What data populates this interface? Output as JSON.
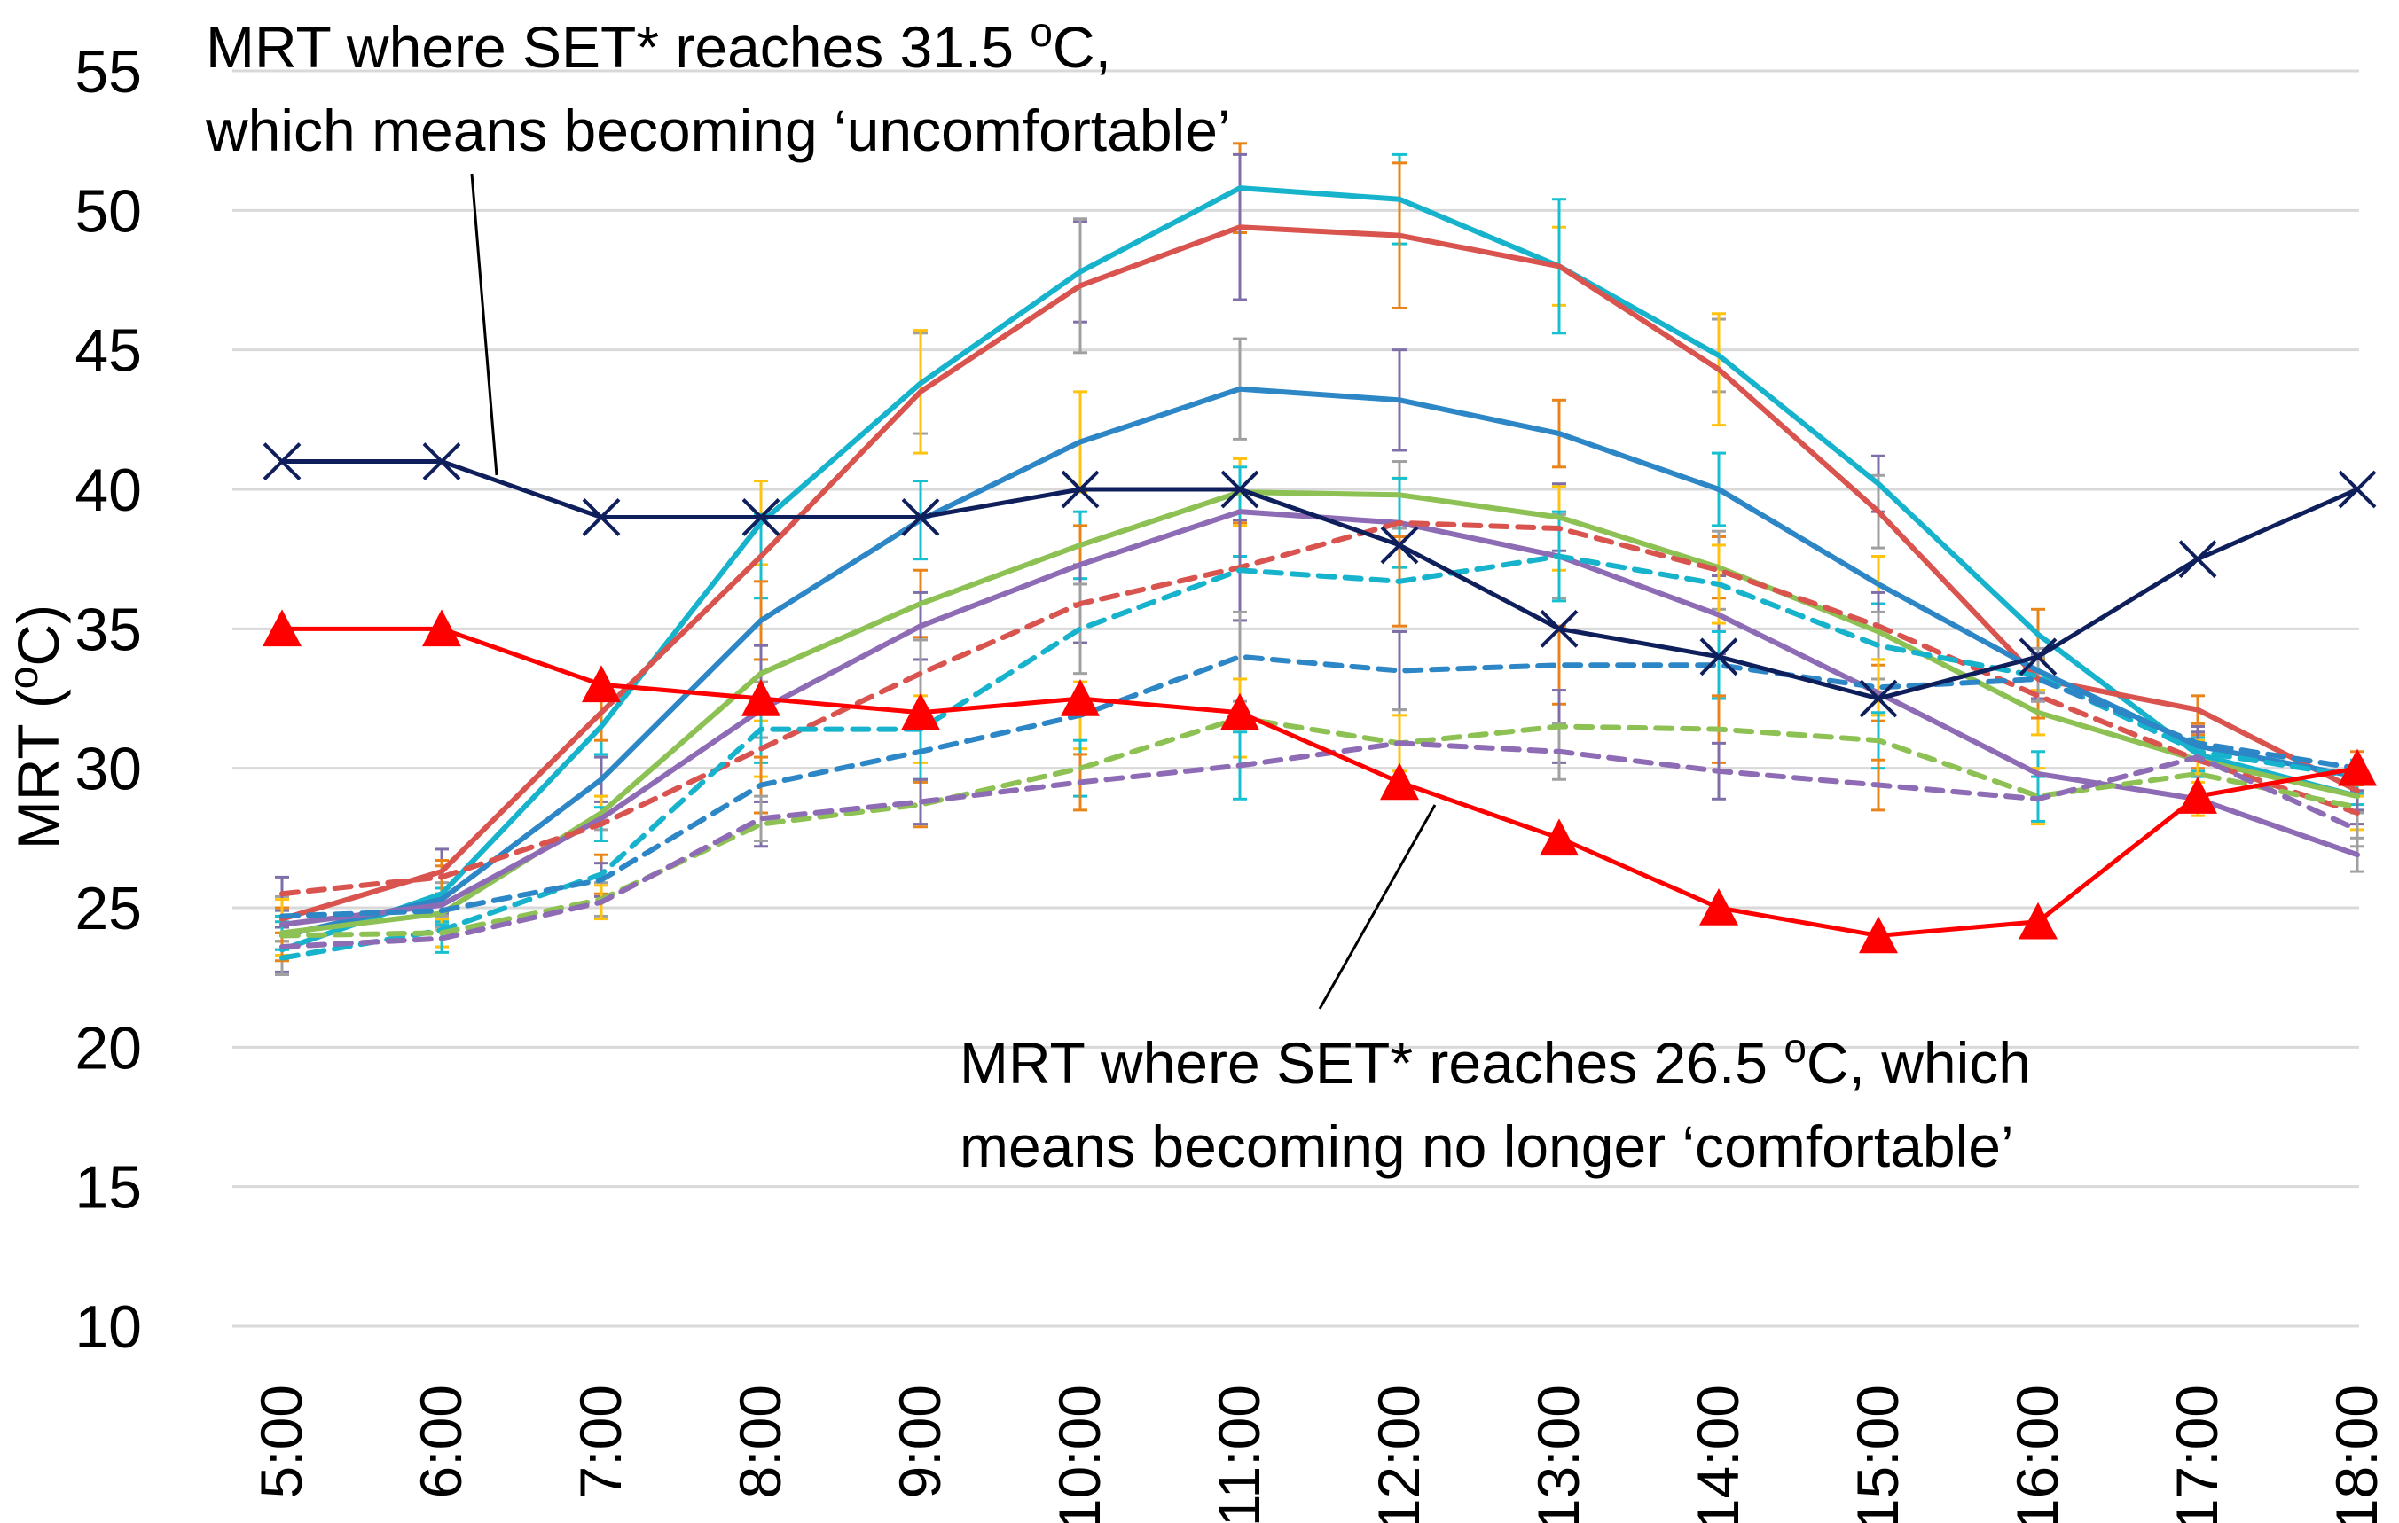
{
  "chart_data": {
    "type": "line",
    "title": "",
    "xlabel": "",
    "ylabel": {
      "main": "MRT (",
      "sup": "o",
      "tail": "C)"
    },
    "ylim": [
      10,
      55
    ],
    "yticks": [
      "10",
      "15",
      "20",
      "25",
      "30",
      "35",
      "40",
      "45",
      "50",
      "55"
    ],
    "categories": [
      "5:00",
      "6:00",
      "7:00",
      "8:00",
      "9:00",
      "10:00",
      "11:00",
      "12:00",
      "13:00",
      "14:00",
      "15:00",
      "16:00",
      "17:00",
      "18:00"
    ],
    "grid": true,
    "series": [
      {
        "id": "solid-cyan",
        "color": "#17b3cc",
        "dash": false,
        "values": [
          23.5,
          25.5,
          31.5,
          38.8,
          43.8,
          47.8,
          50.8,
          50.4,
          48.0,
          44.8,
          40.2,
          34.8,
          30.5,
          29.0
        ],
        "err": [
          0.8,
          1.0,
          1.0,
          1.5,
          1.8,
          1.8,
          1.6,
          1.6,
          1.4,
          1.3,
          1.0,
          0.9,
          0.6,
          0.6
        ]
      },
      {
        "id": "solid-red",
        "color": "#d9534f",
        "dash": false,
        "values": [
          24.6,
          26.3,
          32.0,
          37.6,
          43.5,
          47.3,
          49.4,
          49.1,
          48.0,
          44.3,
          39.2,
          33.2,
          32.1,
          29.2
        ],
        "err": [
          0.8,
          0.8,
          1.0,
          1.5,
          2.2,
          2.4,
          2.6,
          2.6,
          2.4,
          2.0,
          1.3,
          0.8,
          0.5,
          0.5
        ]
      },
      {
        "id": "solid-blue",
        "color": "#2d86c5",
        "dash": false,
        "values": [
          24.0,
          25.3,
          29.6,
          35.3,
          38.9,
          41.7,
          43.6,
          43.2,
          42.0,
          40.0,
          36.6,
          33.5,
          30.8,
          29.7
        ],
        "err": [
          0.7,
          0.6,
          0.8,
          1.4,
          1.4,
          1.8,
          1.8,
          1.8,
          1.2,
          1.3,
          1.0,
          0.8,
          0.5,
          0.5
        ]
      },
      {
        "id": "solid-green",
        "color": "#8dc153",
        "dash": false,
        "values": [
          24.1,
          24.8,
          28.4,
          33.4,
          35.9,
          38.0,
          39.9,
          39.8,
          39.0,
          37.2,
          34.9,
          32.0,
          30.3,
          29.0
        ],
        "err": [
          0.6,
          0.6,
          0.6,
          1.0,
          1.2,
          1.2,
          1.2,
          1.2,
          1.2,
          1.1,
          1.0,
          0.8,
          0.6,
          0.5
        ]
      },
      {
        "id": "solid-purple",
        "color": "#8e6bb5",
        "dash": false,
        "values": [
          24.4,
          25.1,
          28.2,
          32.1,
          35.1,
          37.3,
          39.2,
          38.8,
          37.6,
          35.5,
          32.7,
          29.8,
          28.9,
          26.9
        ],
        "err": [
          0.6,
          0.6,
          0.8,
          1.0,
          1.2,
          1.4,
          1.6,
          1.6,
          1.5,
          1.4,
          1.0,
          0.8,
          0.6,
          0.6
        ]
      },
      {
        "id": "dash-red",
        "color": "#d9534f",
        "dash": true,
        "values": [
          25.5,
          26.1,
          28.0,
          30.7,
          33.4,
          35.9,
          37.2,
          38.8,
          38.6,
          37.1,
          35.1,
          32.6,
          30.3,
          28.4
        ],
        "err": [
          0.6,
          0.6,
          0.6,
          1.0,
          1.2,
          1.4,
          1.6,
          1.6,
          1.5,
          1.4,
          1.2,
          0.8,
          0.6,
          0.6
        ]
      },
      {
        "id": "dash-cyan",
        "color": "#17b3cc",
        "dash": true,
        "values": [
          23.2,
          24.2,
          26.2,
          31.4,
          31.4,
          35.0,
          37.1,
          36.7,
          37.6,
          36.6,
          34.4,
          33.3,
          30.6,
          29.7
        ],
        "err": [
          0.6,
          0.6,
          0.7,
          1.2,
          1.2,
          1.6,
          1.8,
          1.6,
          1.6,
          1.4,
          1.2,
          0.8,
          0.6,
          0.6
        ]
      },
      {
        "id": "dash-blue",
        "color": "#2d86c5",
        "dash": true,
        "values": [
          24.7,
          24.9,
          26.0,
          29.4,
          30.6,
          31.9,
          34.0,
          33.5,
          33.7,
          33.7,
          32.9,
          33.2,
          30.9,
          30.0
        ],
        "err": [
          0.6,
          0.6,
          0.6,
          1.0,
          1.0,
          1.2,
          1.6,
          1.4,
          1.4,
          1.2,
          1.0,
          0.8,
          0.6,
          0.6
        ]
      },
      {
        "id": "dash-green",
        "color": "#8dc153",
        "dash": true,
        "values": [
          24.0,
          24.1,
          25.3,
          28.0,
          28.7,
          30.0,
          31.8,
          30.9,
          31.5,
          31.4,
          31.0,
          29.0,
          29.8,
          28.6
        ],
        "err": [
          0.5,
          0.5,
          0.6,
          0.8,
          0.8,
          1.0,
          1.4,
          1.2,
          1.3,
          1.2,
          1.0,
          1.0,
          0.6,
          0.6
        ]
      },
      {
        "id": "dash-purple",
        "color": "#8e6bb5",
        "dash": true,
        "values": [
          23.6,
          23.9,
          25.2,
          28.2,
          28.8,
          29.5,
          30.1,
          30.9,
          30.6,
          29.9,
          29.4,
          28.9,
          30.4,
          27.8
        ],
        "err": [
          0.5,
          0.5,
          0.6,
          0.8,
          0.8,
          1.0,
          1.2,
          1.0,
          1.0,
          1.0,
          0.9,
          0.8,
          0.6,
          0.6
        ]
      },
      {
        "id": "threshold-uncomfortable",
        "color": "#0f1f5c",
        "dash": false,
        "marker": "x",
        "values": [
          41,
          41,
          39,
          39,
          39,
          40,
          40,
          38,
          35,
          34,
          32.5,
          34,
          37.5,
          40
        ]
      },
      {
        "id": "threshold-comfortable",
        "color": "#ff0000",
        "dash": false,
        "marker": "triangle",
        "values": [
          35,
          35,
          33,
          32.5,
          32,
          32.5,
          32,
          29.5,
          27.5,
          25,
          24,
          24.5,
          29,
          30
        ]
      }
    ],
    "annotations": [
      {
        "id": "anno-uncomfortable",
        "line1": {
          "pre": "MRT where SET* reaches 31.5 ",
          "sup": "o",
          "post": "C,"
        },
        "line2": "which means becoming ‘uncomfortable’",
        "points_to": {
          "category": "6:00",
          "series": "threshold-uncomfortable"
        }
      },
      {
        "id": "anno-comfortable",
        "line1": {
          "pre": "MRT where SET* reaches 26.5 ",
          "sup": "o",
          "post": "C, which"
        },
        "line2": "means becoming no longer ‘comfortable’",
        "points_to": {
          "category": "12:00",
          "series": "threshold-comfortable"
        }
      }
    ]
  }
}
